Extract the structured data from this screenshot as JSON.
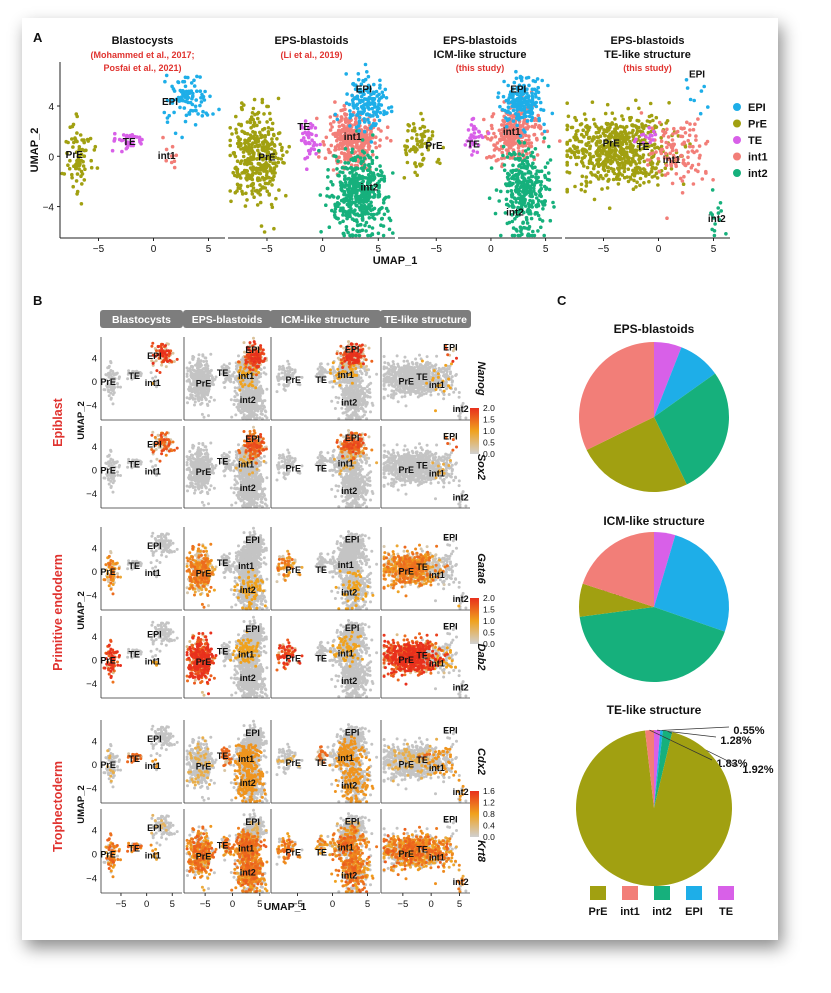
{
  "panels": {
    "a": "A",
    "b": "B",
    "c": "C"
  },
  "colors": {
    "EPI": "#1eaee8",
    "PrE": "#a1a011",
    "TE": "#d860e8",
    "int1": "#f27e78",
    "int2": "#16b07c",
    "gray": "#c4c4c4",
    "red_title": "#e0332f",
    "grad_hi": "#e8301d",
    "grad_mid": "#f0a21e",
    "grad_lo": "#d0d0d0",
    "strip": "#7d7d7d"
  },
  "panelA": {
    "xlabel": "UMAP_1",
    "ylabel": "UMAP_2",
    "xticks": [
      "−5",
      "0",
      "5"
    ],
    "yticks": [
      "4",
      "0",
      "−4"
    ],
    "plots": [
      {
        "title": "Blastocysts",
        "ref1": "(Mohammed et al., 2017;",
        "ref2": "Posfai et al., 2021)"
      },
      {
        "title": "EPS-blastoids",
        "ref1": "(Li et al., 2019)",
        "ref2": ""
      },
      {
        "title": "EPS-blastoids",
        "title2": "ICM-like structure",
        "ref1": "(this study)",
        "ref2": ""
      },
      {
        "title": "EPS-blastoids",
        "title2": "TE-like structure",
        "ref1": "(this study)",
        "ref2": ""
      }
    ],
    "cluster_labels": [
      "EPI",
      "PrE",
      "TE",
      "int1",
      "int2"
    ],
    "legend": [
      {
        "key": "EPI",
        "label": "EPI"
      },
      {
        "key": "PrE",
        "label": "PrE"
      },
      {
        "key": "TE",
        "label": "TE"
      },
      {
        "key": "int1",
        "label": "int1"
      },
      {
        "key": "int2",
        "label": "int2"
      }
    ]
  },
  "panelB": {
    "strips": [
      "Blastocysts",
      "EPS-blastoids",
      "ICM-like structure",
      "TE-like structure"
    ],
    "ylabel": "UMAP_2",
    "xlabel": "UMAP_1",
    "xticks": [
      "−5",
      "0",
      "5"
    ],
    "yticks": [
      "4",
      "0",
      "−4"
    ],
    "groups": [
      {
        "name": "Epiblast",
        "genes": [
          "Nanog",
          "Sox2"
        ],
        "scale": [
          "2.0",
          "1.5",
          "1.0",
          "0.5",
          "0.0"
        ]
      },
      {
        "name": "Primitive endoderm",
        "genes": [
          "Gata6",
          "Dab2"
        ],
        "scale": [
          "2.0",
          "1.5",
          "1.0",
          "0.5",
          "0.0"
        ]
      },
      {
        "name": "Trophectoderm",
        "genes": [
          "Cdx2",
          "Krt8"
        ],
        "scale": [
          "1.6",
          "1.2",
          "0.8",
          "0.4",
          "0.0"
        ]
      }
    ]
  },
  "panelC": {
    "pies": [
      {
        "title": "ICM-like structure",
        "slices": []
      }
    ],
    "legend": [
      {
        "key": "PrE",
        "label": "PrE"
      },
      {
        "key": "int1",
        "label": "int1"
      },
      {
        "key": "int2",
        "label": "int2"
      },
      {
        "key": "EPI",
        "label": "EPI"
      },
      {
        "key": "TE",
        "label": "TE"
      }
    ]
  },
  "chart_data": [
    {
      "type": "pie",
      "title": "EPS-blastoids",
      "slices": [
        {
          "label": "TE",
          "value": 5.96
        },
        {
          "label": "EPI",
          "value": 9.2
        },
        {
          "label": "int2",
          "value": 27.64
        },
        {
          "label": "PrE",
          "value": 24.97
        },
        {
          "label": "int1",
          "value": 32.24
        }
      ],
      "value_labels": [
        "5.96%",
        "9.2%",
        "27.64%",
        "24.97%",
        "32.24%"
      ]
    },
    {
      "type": "pie",
      "title": "ICM-like structure",
      "slices": [
        {
          "label": "TE",
          "value": 4.59
        },
        {
          "label": "EPI",
          "value": 25.74
        },
        {
          "label": "int2",
          "value": 42.57
        },
        {
          "label": "PrE",
          "value": 7.14
        },
        {
          "label": "int1",
          "value": 19.97
        }
      ],
      "value_labels": [
        "4.59%",
        "25.74%",
        "42.57%",
        "7.14%",
        "19.97%"
      ]
    },
    {
      "type": "pie",
      "title": "TE-like structure",
      "slices": [
        {
          "label": "TE",
          "value": 1.28
        },
        {
          "label": "EPI",
          "value": 0.55
        },
        {
          "label": "int2",
          "value": 1.92
        },
        {
          "label": "PrE",
          "value": 94.42
        },
        {
          "label": "int1",
          "value": 1.83
        }
      ],
      "value_labels": [
        "1.28%",
        "0.55%",
        "1.92%",
        "94.42%",
        "1.83%"
      ]
    }
  ]
}
